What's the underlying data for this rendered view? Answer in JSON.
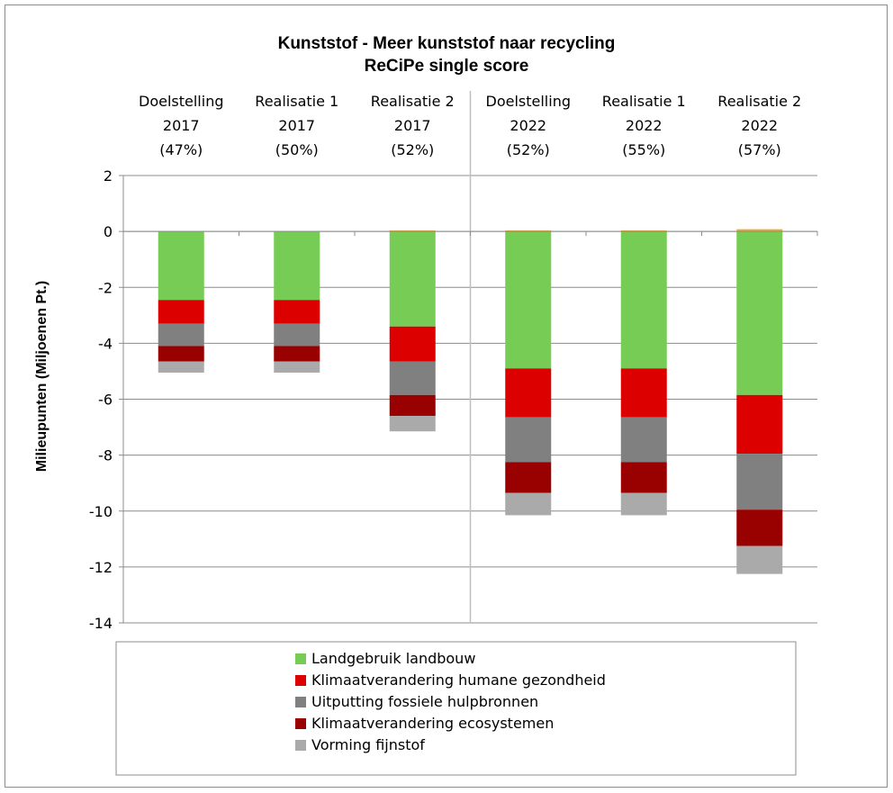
{
  "chart_data": {
    "type": "bar",
    "stacked": true,
    "title": "Kunststof - Meer kunststof naar recycling",
    "subtitle": "ReCiPe single score",
    "ylabel": "Milieupunten (Miljoenen Pt.)",
    "ylim": [
      -14,
      2
    ],
    "yticks": [
      2,
      0,
      -2,
      -4,
      -6,
      -8,
      -10,
      -12,
      -14
    ],
    "ytick_labels": [
      "2",
      "0",
      "-2",
      "-4",
      "-6",
      "-8",
      "-10",
      "-12",
      "-14"
    ],
    "grid": true,
    "legend_position": "bottom",
    "categories": [
      [
        "Doelstelling",
        "2017",
        "(47%)"
      ],
      [
        "Realisatie 1",
        "2017",
        "(50%)"
      ],
      [
        "Realisatie 2",
        "2017",
        "(52%)"
      ],
      [
        "Doelstelling",
        "2022",
        "(52%)"
      ],
      [
        "Realisatie 1",
        "2022",
        "(55%)"
      ],
      [
        "Realisatie 2",
        "2022",
        "(57%)"
      ]
    ],
    "series": [
      {
        "name": "Landgebruik landbouw",
        "color": "#77cc55",
        "values": [
          -2.45,
          -2.45,
          -3.4,
          -4.9,
          -4.9,
          -5.85
        ]
      },
      {
        "name": "Klimaatverandering humane gezondheid",
        "color": "#dd0000",
        "values": [
          -0.85,
          -0.85,
          -1.25,
          -1.75,
          -1.75,
          -2.1
        ]
      },
      {
        "name": "Uitputting fossiele hulpbronnen",
        "color": "#808080",
        "values": [
          -0.8,
          -0.8,
          -1.2,
          -1.6,
          -1.6,
          -2.0
        ]
      },
      {
        "name": "Klimaatverandering ecosystemen",
        "color": "#990000",
        "values": [
          -0.55,
          -0.55,
          -0.75,
          -1.1,
          -1.1,
          -1.3
        ]
      },
      {
        "name": "Vorming fijnstof",
        "color": "#aaaaaa",
        "values": [
          -0.4,
          -0.4,
          -0.55,
          -0.8,
          -0.8,
          -1.0
        ]
      }
    ],
    "positive_series": {
      "name": "",
      "color": "#f0a830",
      "values": [
        0,
        0,
        0.04,
        0.04,
        0.04,
        0.08
      ]
    }
  }
}
